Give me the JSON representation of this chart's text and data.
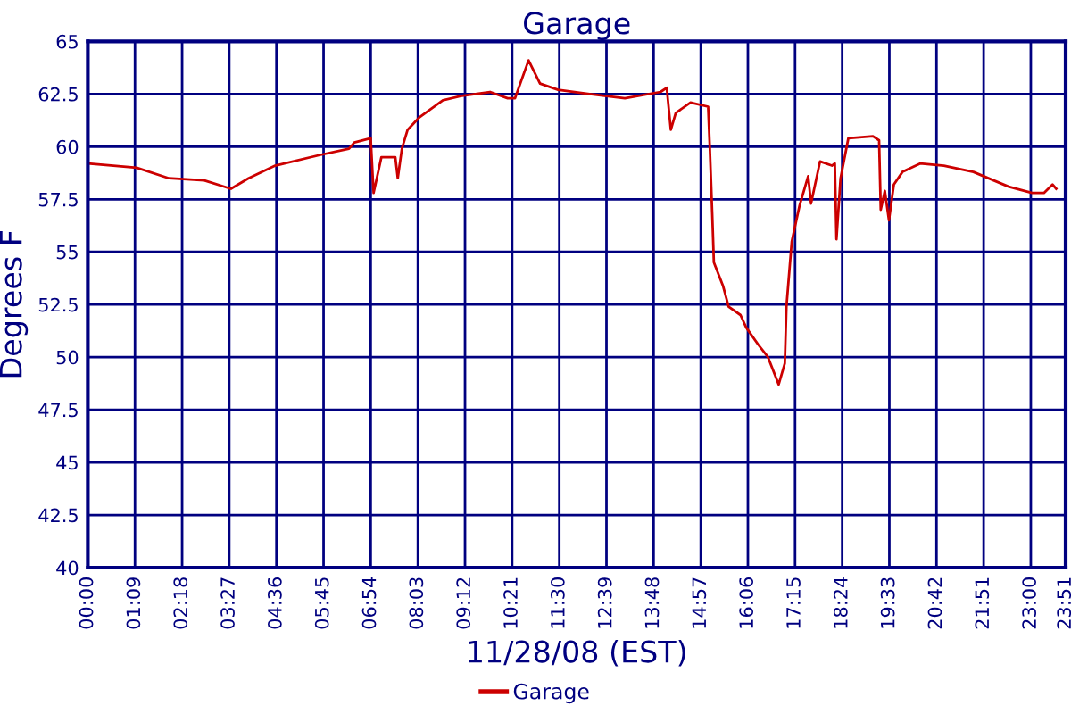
{
  "chart_data": {
    "type": "line",
    "title": "Garage",
    "xlabel": "11/28/08 (EST)",
    "ylabel": "Degrees F",
    "xlim": [
      0,
      23.85
    ],
    "ylim": [
      40,
      65
    ],
    "xticks": [
      {
        "value": 0,
        "label": "00:00"
      },
      {
        "value": 1.15,
        "label": "01:09"
      },
      {
        "value": 2.3,
        "label": "02:18"
      },
      {
        "value": 3.45,
        "label": "03:27"
      },
      {
        "value": 4.6,
        "label": "04:36"
      },
      {
        "value": 5.75,
        "label": "05:45"
      },
      {
        "value": 6.9,
        "label": "06:54"
      },
      {
        "value": 8.05,
        "label": "08:03"
      },
      {
        "value": 9.2,
        "label": "09:12"
      },
      {
        "value": 10.35,
        "label": "10:21"
      },
      {
        "value": 11.5,
        "label": "11:30"
      },
      {
        "value": 12.65,
        "label": "12:39"
      },
      {
        "value": 13.8,
        "label": "13:48"
      },
      {
        "value": 14.95,
        "label": "14:57"
      },
      {
        "value": 16.1,
        "label": "16:06"
      },
      {
        "value": 17.25,
        "label": "17:15"
      },
      {
        "value": 18.4,
        "label": "18:24"
      },
      {
        "value": 19.55,
        "label": "19:33"
      },
      {
        "value": 20.7,
        "label": "20:42"
      },
      {
        "value": 21.85,
        "label": "21:51"
      },
      {
        "value": 23,
        "label": "23:00"
      },
      {
        "value": 23.85,
        "label": "23:51"
      }
    ],
    "yticks": [
      40,
      42.5,
      45,
      47.5,
      50,
      52.5,
      55,
      57.5,
      60,
      62.5,
      65
    ],
    "grid": true,
    "legend": "bottom",
    "marker": "none",
    "line_style": "solid",
    "series": [
      {
        "name": "Garage",
        "color": "#cc0000",
        "x": [
          0,
          1.19,
          1.98,
          2.84,
          3.49,
          3.92,
          4.57,
          5.65,
          6.37,
          6.5,
          6.9,
          6.97,
          7.16,
          7.5,
          7.56,
          7.66,
          7.8,
          8.09,
          8.66,
          9.09,
          9.81,
          10.24,
          10.42,
          10.75,
          11.03,
          11.47,
          12.24,
          13.1,
          13.97,
          14.12,
          14.22,
          14.34,
          14.7,
          15.13,
          15.17,
          15.23,
          15.27,
          15.49,
          15.63,
          15.92,
          16.06,
          16.35,
          16.59,
          16.85,
          17.0,
          17.04,
          17.17,
          17.36,
          17.57,
          17.64,
          17.86,
          18.15,
          18.22,
          18.26,
          18.36,
          18.55,
          19.15,
          19.3,
          19.34,
          19.44,
          19.54,
          19.66,
          19.87,
          20.3,
          20.88,
          21.6,
          22.46,
          23.03,
          23.32,
          23.53,
          23.62
        ],
        "values": [
          59.2,
          59.0,
          58.5,
          58.4,
          58.0,
          58.5,
          59.1,
          59.6,
          59.9,
          60.2,
          60.4,
          57.8,
          59.5,
          59.5,
          58.5,
          59.9,
          60.8,
          61.4,
          62.2,
          62.4,
          62.6,
          62.3,
          62.3,
          64.1,
          63.0,
          62.7,
          62.5,
          62.3,
          62.6,
          62.8,
          60.8,
          61.6,
          62.1,
          61.9,
          60.0,
          56.8,
          54.5,
          53.4,
          52.4,
          52.0,
          51.4,
          50.6,
          50.0,
          48.7,
          49.7,
          52.4,
          55.5,
          57.2,
          58.6,
          57.3,
          59.3,
          59.1,
          59.2,
          55.6,
          58.5,
          60.4,
          60.5,
          60.3,
          57.0,
          57.9,
          56.5,
          58.2,
          58.8,
          59.2,
          59.1,
          58.8,
          58.1,
          57.8,
          57.8,
          58.2,
          58.0
        ]
      }
    ]
  }
}
